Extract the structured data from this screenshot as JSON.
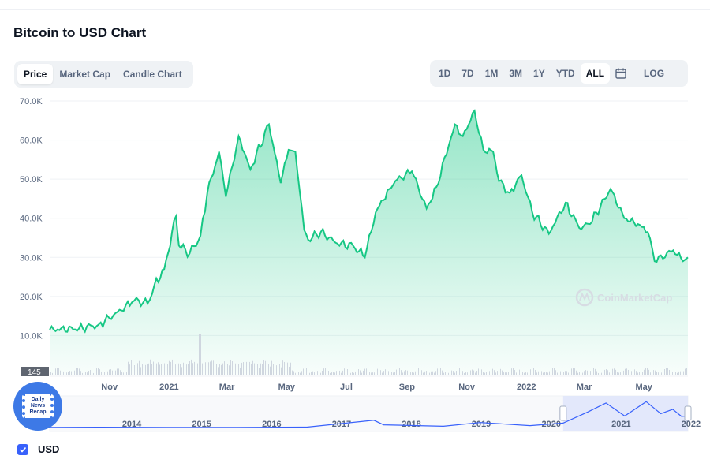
{
  "title": "Bitcoin to USD Chart",
  "tabs": [
    {
      "label": "Price",
      "active": true
    },
    {
      "label": "Market Cap",
      "active": false
    },
    {
      "label": "Candle Chart",
      "active": false
    }
  ],
  "ranges": [
    {
      "label": "1D",
      "active": false
    },
    {
      "label": "7D",
      "active": false
    },
    {
      "label": "1M",
      "active": false
    },
    {
      "label": "3M",
      "active": false
    },
    {
      "label": "1Y",
      "active": false
    },
    {
      "label": "YTD",
      "active": false
    },
    {
      "label": "ALL",
      "active": true
    }
  ],
  "log_label": "LOG",
  "calendar_icon": "calendar-icon",
  "watermark": "CoinMarketCap",
  "badge": {
    "line1": "Daily",
    "line2": "News",
    "line3": "Recap"
  },
  "volume_label": "145",
  "legend": {
    "label": "USD",
    "checked": true
  },
  "colors": {
    "line": "#16c784",
    "area": "#16c784",
    "nav_line": "#3861fb",
    "accent": "#3861fb"
  },
  "chart_data": {
    "type": "area",
    "y_ticks": [
      "70.0K",
      "60.0K",
      "50.0K",
      "40.0K",
      "30.0K",
      "20.0K",
      "10.0K"
    ],
    "x_ticks": [
      "Nov",
      "2021",
      "Mar",
      "May",
      "Jul",
      "Sep",
      "Nov",
      "2022",
      "Mar",
      "May"
    ],
    "ylim": [
      0,
      70000
    ],
    "x_start": "2020-09-01",
    "x_end": "2022-06-15",
    "series": [
      {
        "x": [
          "2020-09-01",
          "2020-10-01",
          "2020-10-21",
          "2020-11-05",
          "2020-11-24",
          "2020-12-01",
          "2020-12-10",
          "2020-12-17",
          "2020-12-27",
          "2021-01-08",
          "2021-01-11",
          "2021-01-22",
          "2021-02-02",
          "2021-02-09",
          "2021-02-21",
          "2021-02-28",
          "2021-03-13",
          "2021-03-25",
          "2021-04-13",
          "2021-04-25",
          "2021-05-03",
          "2021-05-10",
          "2021-05-19",
          "2021-05-23",
          "2021-06-05",
          "2021-06-22",
          "2021-07-08",
          "2021-07-20",
          "2021-07-31",
          "2021-08-14",
          "2021-08-20",
          "2021-09-06",
          "2021-09-21",
          "2021-10-01",
          "2021-10-20",
          "2021-10-28",
          "2021-11-09",
          "2021-11-18",
          "2021-11-28",
          "2021-12-04",
          "2021-12-15",
          "2021-12-27",
          "2022-01-07",
          "2022-01-24",
          "2022-02-10",
          "2022-02-24",
          "2022-03-07",
          "2022-03-28",
          "2022-04-11",
          "2022-04-25",
          "2022-05-05",
          "2022-05-12",
          "2022-05-31",
          "2022-06-10",
          "2022-06-15"
        ],
        "values": [
          11500,
          11800,
          12800,
          15200,
          18500,
          19000,
          18200,
          23000,
          27000,
          40500,
          33000,
          31000,
          35500,
          46500,
          57000,
          45500,
          61000,
          52500,
          64000,
          49000,
          57500,
          57000,
          37000,
          34500,
          36500,
          33500,
          33000,
          30000,
          41500,
          47500,
          49500,
          52000,
          42500,
          48000,
          64000,
          61000,
          67500,
          57500,
          57000,
          49500,
          46500,
          51000,
          41500,
          36000,
          44000,
          37500,
          38500,
          47500,
          40000,
          38500,
          36500,
          29000,
          31800,
          29000,
          30000
        ]
      }
    ]
  },
  "navigator": {
    "years": [
      "2014",
      "2015",
      "2016",
      "2017",
      "2018",
      "2019",
      "2020",
      "2021",
      "2022"
    ],
    "x_start": "2013-04-28",
    "x_end": "2022-06-15",
    "selection_start": "2020-09-01",
    "selection_end": "2022-06-15",
    "points": [
      [
        "2013-04-28",
        130
      ],
      [
        "2014-01-01",
        800
      ],
      [
        "2015-01-01",
        300
      ],
      [
        "2016-01-01",
        430
      ],
      [
        "2017-01-01",
        1000
      ],
      [
        "2017-12-17",
        19000
      ],
      [
        "2018-02-06",
        7000
      ],
      [
        "2018-12-15",
        3300
      ],
      [
        "2019-06-26",
        12900
      ],
      [
        "2020-03-12",
        5000
      ],
      [
        "2020-09-01",
        11500
      ],
      [
        "2021-01-08",
        40500
      ],
      [
        "2021-04-13",
        64000
      ],
      [
        "2021-07-20",
        30000
      ],
      [
        "2021-11-09",
        67500
      ],
      [
        "2022-01-24",
        36000
      ],
      [
        "2022-03-28",
        47500
      ],
      [
        "2022-05-12",
        29000
      ],
      [
        "2022-06-15",
        30000
      ]
    ]
  }
}
